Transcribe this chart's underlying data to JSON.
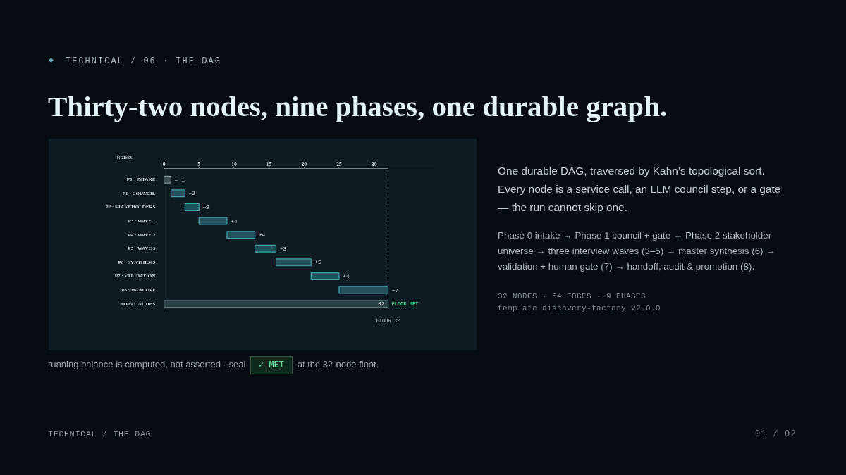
{
  "chart_data": {
    "type": "bar",
    "orientation": "horizontal",
    "title": "Thirty-two nodes, nine phases, one durable graph.",
    "xlabel": "NODES",
    "categories": [
      "P0 · INTAKE",
      "P1 · COUNCIL",
      "P2 · STAKEHOLDERS",
      "P3 · WAVE 1",
      "P4 · WAVE 2",
      "P5 · WAVE 3",
      "P6 · SYNTHESIS",
      "P7 · VALIDATION",
      "P8 · HANDOFF",
      "TOTAL NODES"
    ],
    "base": [
      0,
      1,
      3,
      5,
      9,
      13,
      16,
      21,
      25,
      0
    ],
    "values": [
      1,
      2,
      2,
      4,
      4,
      3,
      5,
      4,
      7,
      32
    ],
    "colors": [
      "#7e9095",
      "#46a1ae",
      "#46a1ae",
      "#46a1ae",
      "#46a1ae",
      "#46a1ae",
      "#46a1ae",
      "#46a1ae",
      "#46a1ae",
      "#5a747c"
    ],
    "value_labels": [
      "= 1",
      "+2",
      "+2",
      "+4",
      "+4",
      "+3",
      "+5",
      "+4",
      "+7",
      "32"
    ],
    "xlim": [
      0,
      32
    ],
    "xticks": [
      0,
      5,
      10,
      15,
      20,
      25,
      30
    ],
    "ref_lines": [
      {
        "axis": "x",
        "value": 32,
        "label": "FLOOR 32",
        "color": "#7d8f94",
        "line_style": "dotted"
      }
    ],
    "annotations": [
      "TECHNICAL / 06 · THE DAG",
      "One durable DAG, traversed by Kahn’s topological sort. Every node is a service call, an LLM council step, or a gate — the run cannot skip one.",
      "Phase 0 intake → Phase 1 council + gate → Phase 2 stakeholder universe → three interview waves (3–5) → master synthesis (6) → validation + human gate (7) → handoff, audit & promotion (8).",
      "32 NODES · 54 EDGES · 9 PHASES",
      "template discovery-factory v2.0.0",
      "running balance is computed, not asserted · seal",
      "✓ MET",
      "at the 32-node floor.",
      "TECHNICAL / THE DAG",
      "01 / 02",
      {
        "text": "FLOOR MET",
        "x": 32,
        "y": "TOTAL NODES"
      }
    ]
  }
}
